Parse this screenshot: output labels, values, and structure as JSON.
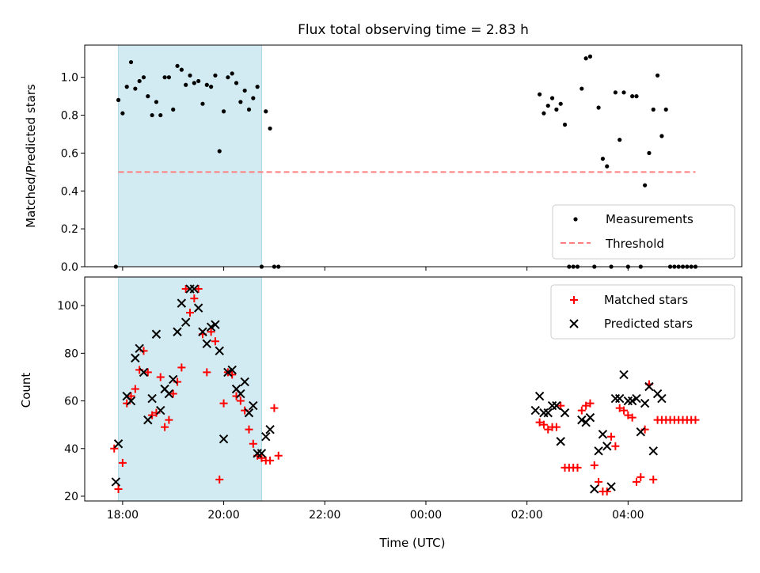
{
  "chart_data": [
    {
      "type": "scatter",
      "title": "Flux total observing time = 2.83 h",
      "ylabel": "Matched/Predicted stars",
      "xlabel": "",
      "ylim": [
        0,
        1.17
      ],
      "yticks": [
        "0.0",
        "0.2",
        "0.4",
        "0.6",
        "0.8",
        "1.0"
      ],
      "legend_location": "lower right",
      "threshold": 0.5,
      "shaded_interval": [
        "17:55",
        "20:45"
      ],
      "colors": {
        "measurements": "#000000",
        "threshold": "#ff7f7f",
        "shade": "#add8e6"
      },
      "series": [
        {
          "name": "Measurements",
          "marker": "dot",
          "x": [
            "17:52",
            "17:55",
            "18:00",
            "18:05",
            "18:10",
            "18:15",
            "18:20",
            "18:25",
            "18:30",
            "18:35",
            "18:40",
            "18:45",
            "18:50",
            "18:55",
            "19:00",
            "19:05",
            "19:10",
            "19:15",
            "19:20",
            "19:25",
            "19:30",
            "19:35",
            "19:40",
            "19:45",
            "19:50",
            "19:55",
            "20:00",
            "20:05",
            "20:10",
            "20:15",
            "20:20",
            "20:25",
            "20:30",
            "20:35",
            "20:40",
            "20:45",
            "20:50",
            "20:55",
            "21:00",
            "21:05",
            "02:15",
            "02:20",
            "02:25",
            "02:30",
            "02:35",
            "02:40",
            "02:45",
            "02:50",
            "02:55",
            "03:00",
            "03:05",
            "03:10",
            "03:15",
            "03:20",
            "03:25",
            "03:30",
            "03:35",
            "03:40",
            "03:45",
            "03:50",
            "03:55",
            "04:00",
            "04:05",
            "04:10",
            "04:15",
            "04:20",
            "04:25",
            "04:30",
            "04:35",
            "04:40",
            "04:45",
            "04:50",
            "04:55",
            "05:00",
            "05:05",
            "05:10",
            "05:15",
            "05:20"
          ],
          "y": [
            0.0,
            0.88,
            0.81,
            0.95,
            1.08,
            0.94,
            0.98,
            1.0,
            0.9,
            0.8,
            0.87,
            0.8,
            1.0,
            1.0,
            0.83,
            1.06,
            1.04,
            0.96,
            1.01,
            0.97,
            0.98,
            0.86,
            0.96,
            0.95,
            1.01,
            0.61,
            0.82,
            1.0,
            1.02,
            0.97,
            0.87,
            0.93,
            0.83,
            0.89,
            0.95,
            0.0,
            0.82,
            0.73,
            0.0,
            0.0,
            0.91,
            0.81,
            0.85,
            0.89,
            0.83,
            0.86,
            0.75,
            0.0,
            0.0,
            0.0,
            0.94,
            1.1,
            1.11,
            0.0,
            0.84,
            0.57,
            0.53,
            0.0,
            0.92,
            0.67,
            0.92,
            0.0,
            0.9,
            0.9,
            0.0,
            0.43,
            0.6,
            0.83,
            1.01,
            0.69,
            0.83,
            0.0,
            0.0,
            0.0,
            0.0,
            0.0,
            0.0,
            0.0
          ]
        },
        {
          "name": "Threshold",
          "marker": "dashed-line",
          "x": [
            "17:55",
            "05:20"
          ],
          "y": [
            0.5,
            0.5
          ]
        }
      ]
    },
    {
      "type": "scatter",
      "title": "",
      "ylabel": "Count",
      "xlabel": "Time (UTC)",
      "ylim": [
        18,
        112
      ],
      "yticks": [
        "20",
        "40",
        "60",
        "80",
        "100"
      ],
      "x_ticks": [
        "18:00",
        "20:00",
        "22:00",
        "00:00",
        "02:00",
        "04:00"
      ],
      "x_range": [
        "17:15",
        "06:15"
      ],
      "legend_location": "upper right",
      "shaded_interval": [
        "17:55",
        "20:45"
      ],
      "colors": {
        "matched": "#ff0000",
        "predicted": "#000000",
        "shade": "#add8e6"
      },
      "series": [
        {
          "name": "Matched stars",
          "marker": "plus",
          "x": [
            "17:50",
            "17:55",
            "18:00",
            "18:05",
            "18:10",
            "18:15",
            "18:20",
            "18:25",
            "18:30",
            "18:35",
            "18:40",
            "18:45",
            "18:50",
            "18:55",
            "19:00",
            "19:05",
            "19:10",
            "19:15",
            "19:20",
            "19:25",
            "19:30",
            "19:35",
            "19:40",
            "19:45",
            "19:50",
            "19:55",
            "20:00",
            "20:05",
            "20:10",
            "20:15",
            "20:20",
            "20:25",
            "20:30",
            "20:35",
            "20:40",
            "20:45",
            "20:50",
            "20:55",
            "21:00",
            "21:05",
            "02:15",
            "02:20",
            "02:25",
            "02:30",
            "02:35",
            "02:40",
            "02:45",
            "02:50",
            "02:55",
            "03:00",
            "03:05",
            "03:10",
            "03:15",
            "03:20",
            "03:25",
            "03:30",
            "03:35",
            "03:40",
            "03:45",
            "03:50",
            "03:55",
            "04:00",
            "04:05",
            "04:10",
            "04:15",
            "04:20",
            "04:25",
            "04:30",
            "04:35",
            "04:40",
            "04:45",
            "04:50",
            "04:55",
            "05:00",
            "05:05",
            "05:10",
            "05:15",
            "05:20"
          ],
          "y": [
            40,
            23,
            34,
            59,
            62,
            65,
            73,
            81,
            72,
            54,
            55,
            70,
            49,
            52,
            63,
            68,
            74,
            107,
            97,
            103,
            107,
            88,
            72,
            89,
            85,
            27,
            59,
            72,
            71,
            62,
            60,
            56,
            48,
            42,
            37,
            36,
            35,
            35,
            57,
            37,
            51,
            50,
            48,
            49,
            49,
            58,
            32,
            32,
            32,
            32,
            56,
            58,
            59,
            33,
            26,
            22,
            22,
            45,
            41,
            57,
            56,
            54,
            53,
            26,
            28,
            48,
            67,
            27,
            52,
            52,
            52,
            52,
            52,
            52,
            52,
            52,
            52,
            52
          ],
          "y_approx_note": ""
        },
        {
          "name": "Predicted stars",
          "marker": "x",
          "x": [
            "17:52",
            "17:55",
            "18:05",
            "18:10",
            "18:15",
            "18:20",
            "18:25",
            "18:30",
            "18:35",
            "18:40",
            "18:45",
            "18:50",
            "18:55",
            "19:00",
            "19:05",
            "19:10",
            "19:15",
            "19:20",
            "19:25",
            "19:30",
            "19:35",
            "19:40",
            "19:45",
            "19:50",
            "19:55",
            "20:00",
            "20:05",
            "20:10",
            "20:15",
            "20:20",
            "20:25",
            "20:30",
            "20:35",
            "20:40",
            "20:45",
            "20:50",
            "20:55",
            "02:10",
            "02:15",
            "02:20",
            "02:25",
            "02:30",
            "02:35",
            "02:40",
            "02:45",
            "03:05",
            "03:10",
            "03:15",
            "03:20",
            "03:25",
            "03:30",
            "03:35",
            "03:40",
            "03:45",
            "03:50",
            "03:55",
            "04:00",
            "04:05",
            "04:10",
            "04:15",
            "04:20",
            "04:25",
            "04:30",
            "04:35",
            "04:40"
          ],
          "y": [
            26,
            42,
            62,
            60,
            78,
            82,
            72,
            52,
            61,
            88,
            56,
            65,
            63,
            69,
            89,
            101,
            93,
            107,
            107,
            99,
            89,
            84,
            91,
            92,
            81,
            44,
            72,
            73,
            65,
            63,
            68,
            55,
            58,
            38,
            38,
            45,
            48,
            56,
            62,
            55,
            55,
            58,
            58,
            43,
            55,
            52,
            51,
            53,
            23,
            39,
            46,
            41,
            24,
            61,
            61,
            71,
            60,
            60,
            61,
            47,
            59,
            66,
            39,
            63,
            61
          ]
        }
      ]
    }
  ]
}
